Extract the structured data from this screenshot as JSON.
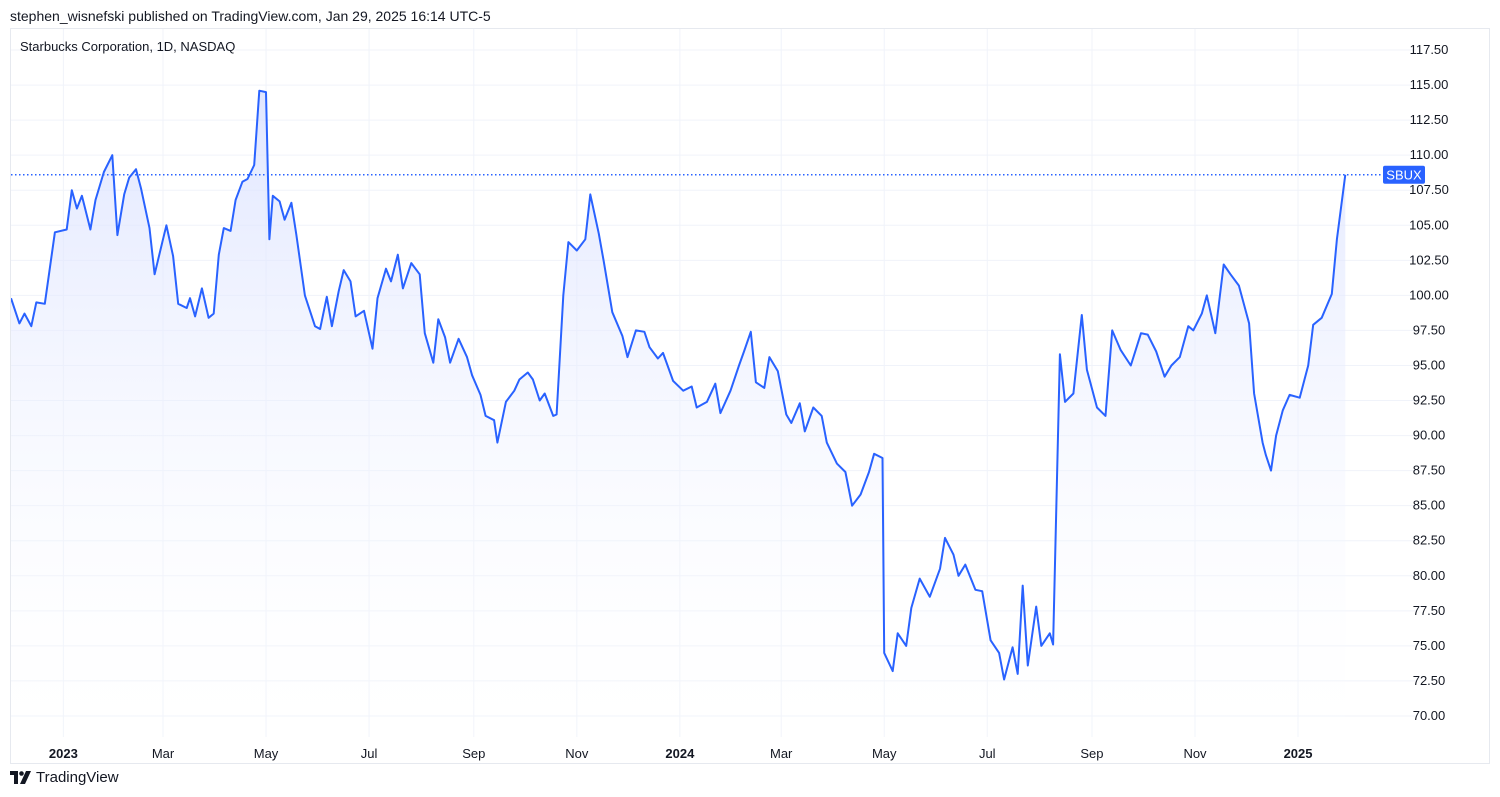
{
  "header": {
    "published_line": "stephen_wisnefski published on TradingView.com, Jan 29, 2025 16:14 UTC-5"
  },
  "footer": {
    "brand_name": "TradingView",
    "brand_icon": "tradingview-logo-icon"
  },
  "colors": {
    "line": "#2962ff",
    "area_top": "#d6deff",
    "grid": "#f0f3fa",
    "badge_bg": "#2962ff",
    "badge_text": "#ffffff"
  },
  "chart_data": {
    "type": "area",
    "title": "Starbucks Corporation, 1D, NASDAQ",
    "series": [
      {
        "name": "SBUX",
        "points": [
          [
            "2022-12-01",
            99.8
          ],
          [
            "2022-12-06",
            98.0
          ],
          [
            "2022-12-09",
            98.7
          ],
          [
            "2022-12-13",
            97.8
          ],
          [
            "2022-12-16",
            99.5
          ],
          [
            "2022-12-21",
            99.4
          ],
          [
            "2022-12-27",
            104.5
          ],
          [
            "2023-01-03",
            104.7
          ],
          [
            "2023-01-06",
            107.5
          ],
          [
            "2023-01-09",
            106.2
          ],
          [
            "2023-01-12",
            107.1
          ],
          [
            "2023-01-17",
            104.7
          ],
          [
            "2023-01-20",
            106.8
          ],
          [
            "2023-01-25",
            108.8
          ],
          [
            "2023-01-30",
            110.0
          ],
          [
            "2023-02-02",
            104.3
          ],
          [
            "2023-02-06",
            107.2
          ],
          [
            "2023-02-09",
            108.4
          ],
          [
            "2023-02-13",
            109.0
          ],
          [
            "2023-02-16",
            107.6
          ],
          [
            "2023-02-21",
            104.8
          ],
          [
            "2023-02-24",
            101.5
          ],
          [
            "2023-03-01",
            104.0
          ],
          [
            "2023-03-03",
            105.0
          ],
          [
            "2023-03-07",
            102.8
          ],
          [
            "2023-03-10",
            99.4
          ],
          [
            "2023-03-15",
            99.1
          ],
          [
            "2023-03-17",
            99.8
          ],
          [
            "2023-03-20",
            98.5
          ],
          [
            "2023-03-24",
            100.5
          ],
          [
            "2023-03-28",
            98.4
          ],
          [
            "2023-03-31",
            98.7
          ],
          [
            "2023-04-03",
            102.9
          ],
          [
            "2023-04-06",
            104.8
          ],
          [
            "2023-04-10",
            104.6
          ],
          [
            "2023-04-13",
            106.8
          ],
          [
            "2023-04-17",
            108.1
          ],
          [
            "2023-04-20",
            108.3
          ],
          [
            "2023-04-24",
            109.3
          ],
          [
            "2023-04-27",
            114.6
          ],
          [
            "2023-05-01",
            114.5
          ],
          [
            "2023-05-03",
            104.0
          ],
          [
            "2023-05-05",
            107.1
          ],
          [
            "2023-05-09",
            106.7
          ],
          [
            "2023-05-12",
            105.4
          ],
          [
            "2023-05-16",
            106.6
          ],
          [
            "2023-05-19",
            104.3
          ],
          [
            "2023-05-24",
            100.0
          ],
          [
            "2023-05-30",
            97.8
          ],
          [
            "2023-06-02",
            97.6
          ],
          [
            "2023-06-06",
            99.9
          ],
          [
            "2023-06-09",
            97.8
          ],
          [
            "2023-06-13",
            100.3
          ],
          [
            "2023-06-16",
            101.8
          ],
          [
            "2023-06-20",
            101.0
          ],
          [
            "2023-06-23",
            98.5
          ],
          [
            "2023-06-28",
            98.9
          ],
          [
            "2023-07-03",
            96.2
          ],
          [
            "2023-07-06",
            99.8
          ],
          [
            "2023-07-11",
            101.9
          ],
          [
            "2023-07-14",
            101.0
          ],
          [
            "2023-07-18",
            102.9
          ],
          [
            "2023-07-21",
            100.5
          ],
          [
            "2023-07-26",
            102.3
          ],
          [
            "2023-07-31",
            101.5
          ],
          [
            "2023-08-03",
            97.3
          ],
          [
            "2023-08-08",
            95.2
          ],
          [
            "2023-08-11",
            98.3
          ],
          [
            "2023-08-15",
            97.0
          ],
          [
            "2023-08-18",
            95.2
          ],
          [
            "2023-08-23",
            96.9
          ],
          [
            "2023-08-28",
            95.6
          ],
          [
            "2023-08-31",
            94.3
          ],
          [
            "2023-09-05",
            92.9
          ],
          [
            "2023-09-08",
            91.4
          ],
          [
            "2023-09-13",
            91.1
          ],
          [
            "2023-09-15",
            89.5
          ],
          [
            "2023-09-20",
            92.4
          ],
          [
            "2023-09-25",
            93.2
          ],
          [
            "2023-09-28",
            94.0
          ],
          [
            "2023-10-03",
            94.5
          ],
          [
            "2023-10-06",
            94.0
          ],
          [
            "2023-10-10",
            92.5
          ],
          [
            "2023-10-13",
            93.0
          ],
          [
            "2023-10-18",
            91.4
          ],
          [
            "2023-10-20",
            91.5
          ],
          [
            "2023-10-24",
            100.0
          ],
          [
            "2023-10-27",
            103.8
          ],
          [
            "2023-11-01",
            103.2
          ],
          [
            "2023-11-06",
            104.0
          ],
          [
            "2023-11-09",
            107.2
          ],
          [
            "2023-11-14",
            104.4
          ],
          [
            "2023-11-17",
            102.4
          ],
          [
            "2023-11-22",
            98.8
          ],
          [
            "2023-11-28",
            97.1
          ],
          [
            "2023-12-01",
            95.6
          ],
          [
            "2023-12-06",
            97.5
          ],
          [
            "2023-12-11",
            97.4
          ],
          [
            "2023-12-14",
            96.3
          ],
          [
            "2023-12-19",
            95.5
          ],
          [
            "2023-12-22",
            95.9
          ],
          [
            "2023-12-28",
            93.9
          ],
          [
            "2024-01-03",
            93.2
          ],
          [
            "2024-01-08",
            93.5
          ],
          [
            "2024-01-11",
            92.0
          ],
          [
            "2024-01-17",
            92.4
          ],
          [
            "2024-01-22",
            93.7
          ],
          [
            "2024-01-25",
            91.6
          ],
          [
            "2024-01-31",
            93.2
          ],
          [
            "2024-02-05",
            95.0
          ],
          [
            "2024-02-08",
            96.0
          ],
          [
            "2024-02-12",
            97.4
          ],
          [
            "2024-02-15",
            93.8
          ],
          [
            "2024-02-20",
            93.4
          ],
          [
            "2024-02-23",
            95.6
          ],
          [
            "2024-02-28",
            94.6
          ],
          [
            "2024-03-04",
            91.5
          ],
          [
            "2024-03-07",
            90.9
          ],
          [
            "2024-03-12",
            92.3
          ],
          [
            "2024-03-15",
            90.3
          ],
          [
            "2024-03-20",
            92.0
          ],
          [
            "2024-03-25",
            91.4
          ],
          [
            "2024-03-28",
            89.5
          ],
          [
            "2024-04-03",
            88.0
          ],
          [
            "2024-04-08",
            87.4
          ],
          [
            "2024-04-12",
            85.0
          ],
          [
            "2024-04-17",
            85.8
          ],
          [
            "2024-04-22",
            87.4
          ],
          [
            "2024-04-25",
            88.7
          ],
          [
            "2024-04-30",
            88.4
          ],
          [
            "2024-05-01",
            74.5
          ],
          [
            "2024-05-06",
            73.2
          ],
          [
            "2024-05-09",
            75.9
          ],
          [
            "2024-05-14",
            75.0
          ],
          [
            "2024-05-17",
            77.7
          ],
          [
            "2024-05-22",
            79.8
          ],
          [
            "2024-05-28",
            78.5
          ],
          [
            "2024-06-03",
            80.5
          ],
          [
            "2024-06-06",
            82.7
          ],
          [
            "2024-06-11",
            81.5
          ],
          [
            "2024-06-14",
            80.0
          ],
          [
            "2024-06-18",
            80.8
          ],
          [
            "2024-06-24",
            79.0
          ],
          [
            "2024-06-28",
            78.9
          ],
          [
            "2024-07-03",
            75.4
          ],
          [
            "2024-07-08",
            74.5
          ],
          [
            "2024-07-11",
            72.6
          ],
          [
            "2024-07-16",
            74.9
          ],
          [
            "2024-07-19",
            73.0
          ],
          [
            "2024-07-22",
            79.3
          ],
          [
            "2024-07-25",
            73.6
          ],
          [
            "2024-07-30",
            77.8
          ],
          [
            "2024-08-02",
            75.0
          ],
          [
            "2024-08-07",
            75.9
          ],
          [
            "2024-08-09",
            75.1
          ],
          [
            "2024-08-13",
            95.8
          ],
          [
            "2024-08-16",
            92.4
          ],
          [
            "2024-08-21",
            93.0
          ],
          [
            "2024-08-26",
            98.6
          ],
          [
            "2024-08-29",
            94.7
          ],
          [
            "2024-09-04",
            92.0
          ],
          [
            "2024-09-09",
            91.4
          ],
          [
            "2024-09-13",
            97.5
          ],
          [
            "2024-09-18",
            96.1
          ],
          [
            "2024-09-24",
            95.0
          ],
          [
            "2024-09-30",
            97.3
          ],
          [
            "2024-10-04",
            97.2
          ],
          [
            "2024-10-09",
            96.0
          ],
          [
            "2024-10-14",
            94.2
          ],
          [
            "2024-10-18",
            95.0
          ],
          [
            "2024-10-23",
            95.6
          ],
          [
            "2024-10-28",
            97.8
          ],
          [
            "2024-10-31",
            97.5
          ],
          [
            "2024-11-05",
            98.7
          ],
          [
            "2024-11-08",
            100.0
          ],
          [
            "2024-11-13",
            97.3
          ],
          [
            "2024-11-18",
            102.2
          ],
          [
            "2024-11-22",
            101.5
          ],
          [
            "2024-11-27",
            100.7
          ],
          [
            "2024-12-03",
            98.0
          ],
          [
            "2024-12-06",
            93.0
          ],
          [
            "2024-12-11",
            89.5
          ],
          [
            "2024-12-13",
            88.6
          ],
          [
            "2024-12-16",
            87.5
          ],
          [
            "2024-12-19",
            90.0
          ],
          [
            "2024-12-23",
            91.8
          ],
          [
            "2024-12-27",
            92.9
          ],
          [
            "2025-01-02",
            92.7
          ],
          [
            "2025-01-07",
            95.0
          ],
          [
            "2025-01-10",
            97.9
          ],
          [
            "2025-01-15",
            98.4
          ],
          [
            "2025-01-21",
            100.1
          ],
          [
            "2025-01-24",
            104.0
          ],
          [
            "2025-01-29",
            108.6
          ]
        ]
      }
    ],
    "last_value_label": "SBUX",
    "last_value": 108.6,
    "ylim": [
      68.5,
      119.0
    ],
    "y_ticks": [
      "117.50",
      "115.00",
      "112.50",
      "110.00",
      "107.50",
      "105.00",
      "102.50",
      "100.00",
      "97.50",
      "95.00",
      "92.50",
      "90.00",
      "87.50",
      "85.00",
      "82.50",
      "80.00",
      "77.50",
      "75.00",
      "72.50",
      "70.00"
    ],
    "xlim": [
      "2022-12-01",
      "2025-02-28"
    ],
    "x_ticks": [
      {
        "label": "2023",
        "date": "2023-01-01",
        "major": true
      },
      {
        "label": "Mar",
        "date": "2023-03-01",
        "major": false
      },
      {
        "label": "May",
        "date": "2023-05-01",
        "major": false
      },
      {
        "label": "Jul",
        "date": "2023-07-01",
        "major": false
      },
      {
        "label": "Sep",
        "date": "2023-09-01",
        "major": false
      },
      {
        "label": "Nov",
        "date": "2023-11-01",
        "major": false
      },
      {
        "label": "2024",
        "date": "2024-01-01",
        "major": true
      },
      {
        "label": "Mar",
        "date": "2024-03-01",
        "major": false
      },
      {
        "label": "May",
        "date": "2024-05-01",
        "major": false
      },
      {
        "label": "Jul",
        "date": "2024-07-01",
        "major": false
      },
      {
        "label": "Sep",
        "date": "2024-09-01",
        "major": false
      },
      {
        "label": "Nov",
        "date": "2024-11-01",
        "major": false
      },
      {
        "label": "2025",
        "date": "2025-01-01",
        "major": true
      }
    ],
    "grid": true,
    "price_axis": "right",
    "legend_position": "top-left"
  }
}
